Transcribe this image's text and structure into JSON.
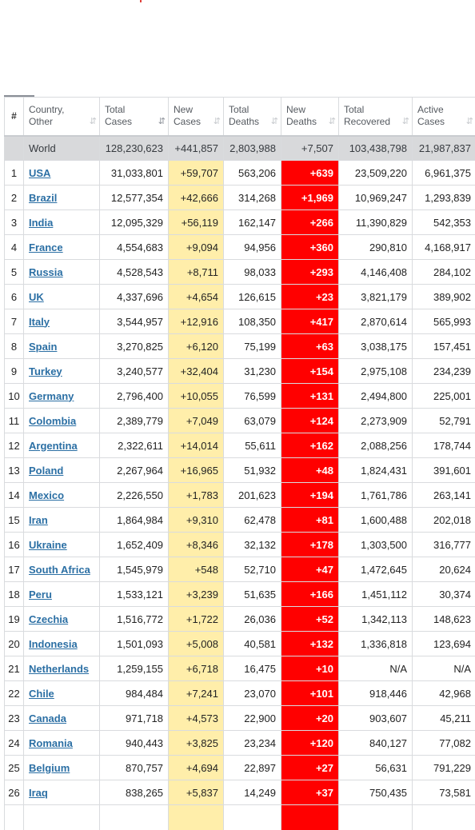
{
  "headers": [
    {
      "label": "#"
    },
    {
      "label": "Country,\nOther",
      "sort": "⇵"
    },
    {
      "label": "Total\nCases",
      "sort": "⇵"
    },
    {
      "label": "New\nCases",
      "sort": "⇵"
    },
    {
      "label": "Total\nDeaths",
      "sort": "⇵"
    },
    {
      "label": "New\nDeaths",
      "sort": "⇵"
    },
    {
      "label": "Total\nRecovered",
      "sort": "⇵"
    },
    {
      "label": "Active\nCases",
      "sort": "⇵"
    }
  ],
  "world": {
    "name": "World",
    "total_cases": "128,230,623",
    "new_cases": "+441,857",
    "total_deaths": "2,803,988",
    "new_deaths": "+7,507",
    "total_recovered": "103,438,798",
    "active_cases": "21,987,837"
  },
  "rows": [
    {
      "n": "1",
      "country": "USA",
      "tc": "31,033,801",
      "nc": "+59,707",
      "td": "563,206",
      "nd": "+639",
      "tr": "23,509,220",
      "ac": "6,961,375"
    },
    {
      "n": "2",
      "country": "Brazil",
      "tc": "12,577,354",
      "nc": "+42,666",
      "td": "314,268",
      "nd": "+1,969",
      "tr": "10,969,247",
      "ac": "1,293,839"
    },
    {
      "n": "3",
      "country": "India",
      "tc": "12,095,329",
      "nc": "+56,119",
      "td": "162,147",
      "nd": "+266",
      "tr": "11,390,829",
      "ac": "542,353"
    },
    {
      "n": "4",
      "country": "France",
      "tc": "4,554,683",
      "nc": "+9,094",
      "td": "94,956",
      "nd": "+360",
      "tr": "290,810",
      "ac": "4,168,917"
    },
    {
      "n": "5",
      "country": "Russia",
      "tc": "4,528,543",
      "nc": "+8,711",
      "td": "98,033",
      "nd": "+293",
      "tr": "4,146,408",
      "ac": "284,102"
    },
    {
      "n": "6",
      "country": "UK",
      "tc": "4,337,696",
      "nc": "+4,654",
      "td": "126,615",
      "nd": "+23",
      "tr": "3,821,179",
      "ac": "389,902"
    },
    {
      "n": "7",
      "country": "Italy",
      "tc": "3,544,957",
      "nc": "+12,916",
      "td": "108,350",
      "nd": "+417",
      "tr": "2,870,614",
      "ac": "565,993"
    },
    {
      "n": "8",
      "country": "Spain",
      "tc": "3,270,825",
      "nc": "+6,120",
      "td": "75,199",
      "nd": "+63",
      "tr": "3,038,175",
      "ac": "157,451"
    },
    {
      "n": "9",
      "country": "Turkey",
      "tc": "3,240,577",
      "nc": "+32,404",
      "td": "31,230",
      "nd": "+154",
      "tr": "2,975,108",
      "ac": "234,239"
    },
    {
      "n": "10",
      "country": "Germany",
      "tc": "2,796,400",
      "nc": "+10,055",
      "td": "76,599",
      "nd": "+131",
      "tr": "2,494,800",
      "ac": "225,001"
    },
    {
      "n": "11",
      "country": "Colombia",
      "tc": "2,389,779",
      "nc": "+7,049",
      "td": "63,079",
      "nd": "+124",
      "tr": "2,273,909",
      "ac": "52,791"
    },
    {
      "n": "12",
      "country": "Argentina",
      "tc": "2,322,611",
      "nc": "+14,014",
      "td": "55,611",
      "nd": "+162",
      "tr": "2,088,256",
      "ac": "178,744"
    },
    {
      "n": "13",
      "country": "Poland",
      "tc": "2,267,964",
      "nc": "+16,965",
      "td": "51,932",
      "nd": "+48",
      "tr": "1,824,431",
      "ac": "391,601"
    },
    {
      "n": "14",
      "country": "Mexico",
      "tc": "2,226,550",
      "nc": "+1,783",
      "td": "201,623",
      "nd": "+194",
      "tr": "1,761,786",
      "ac": "263,141"
    },
    {
      "n": "15",
      "country": "Iran",
      "tc": "1,864,984",
      "nc": "+9,310",
      "td": "62,478",
      "nd": "+81",
      "tr": "1,600,488",
      "ac": "202,018"
    },
    {
      "n": "16",
      "country": "Ukraine",
      "tc": "1,652,409",
      "nc": "+8,346",
      "td": "32,132",
      "nd": "+178",
      "tr": "1,303,500",
      "ac": "316,777"
    },
    {
      "n": "17",
      "country": "South Africa",
      "tc": "1,545,979",
      "nc": "+548",
      "td": "52,710",
      "nd": "+47",
      "tr": "1,472,645",
      "ac": "20,624"
    },
    {
      "n": "18",
      "country": "Peru",
      "tc": "1,533,121",
      "nc": "+3,239",
      "td": "51,635",
      "nd": "+166",
      "tr": "1,451,112",
      "ac": "30,374"
    },
    {
      "n": "19",
      "country": "Czechia",
      "tc": "1,516,772",
      "nc": "+1,722",
      "td": "26,036",
      "nd": "+52",
      "tr": "1,342,113",
      "ac": "148,623"
    },
    {
      "n": "20",
      "country": "Indonesia",
      "tc": "1,501,093",
      "nc": "+5,008",
      "td": "40,581",
      "nd": "+132",
      "tr": "1,336,818",
      "ac": "123,694"
    },
    {
      "n": "21",
      "country": "Netherlands",
      "tc": "1,259,155",
      "nc": "+6,718",
      "td": "16,475",
      "nd": "+10",
      "tr": "N/A",
      "ac": "N/A"
    },
    {
      "n": "22",
      "country": "Chile",
      "tc": "984,484",
      "nc": "+7,241",
      "td": "23,070",
      "nd": "+101",
      "tr": "918,446",
      "ac": "42,968"
    },
    {
      "n": "23",
      "country": "Canada",
      "tc": "971,718",
      "nc": "+4,573",
      "td": "22,900",
      "nd": "+20",
      "tr": "903,607",
      "ac": "45,211"
    },
    {
      "n": "24",
      "country": "Romania",
      "tc": "940,443",
      "nc": "+3,825",
      "td": "23,234",
      "nd": "+120",
      "tr": "840,127",
      "ac": "77,082"
    },
    {
      "n": "25",
      "country": "Belgium",
      "tc": "870,757",
      "nc": "+4,694",
      "td": "22,897",
      "nd": "+27",
      "tr": "56,631",
      "ac": "791,229"
    },
    {
      "n": "26",
      "country": "Iraq",
      "tc": "838,265",
      "nc": "+5,837",
      "td": "14,249",
      "nd": "+37",
      "tr": "750,435",
      "ac": "73,581"
    }
  ],
  "colors": {
    "new_cases_bg": "#ffeeaa",
    "new_deaths_bg": "#ff0000",
    "world_bg": "#d8d9db",
    "link": "#2b6fa4"
  }
}
